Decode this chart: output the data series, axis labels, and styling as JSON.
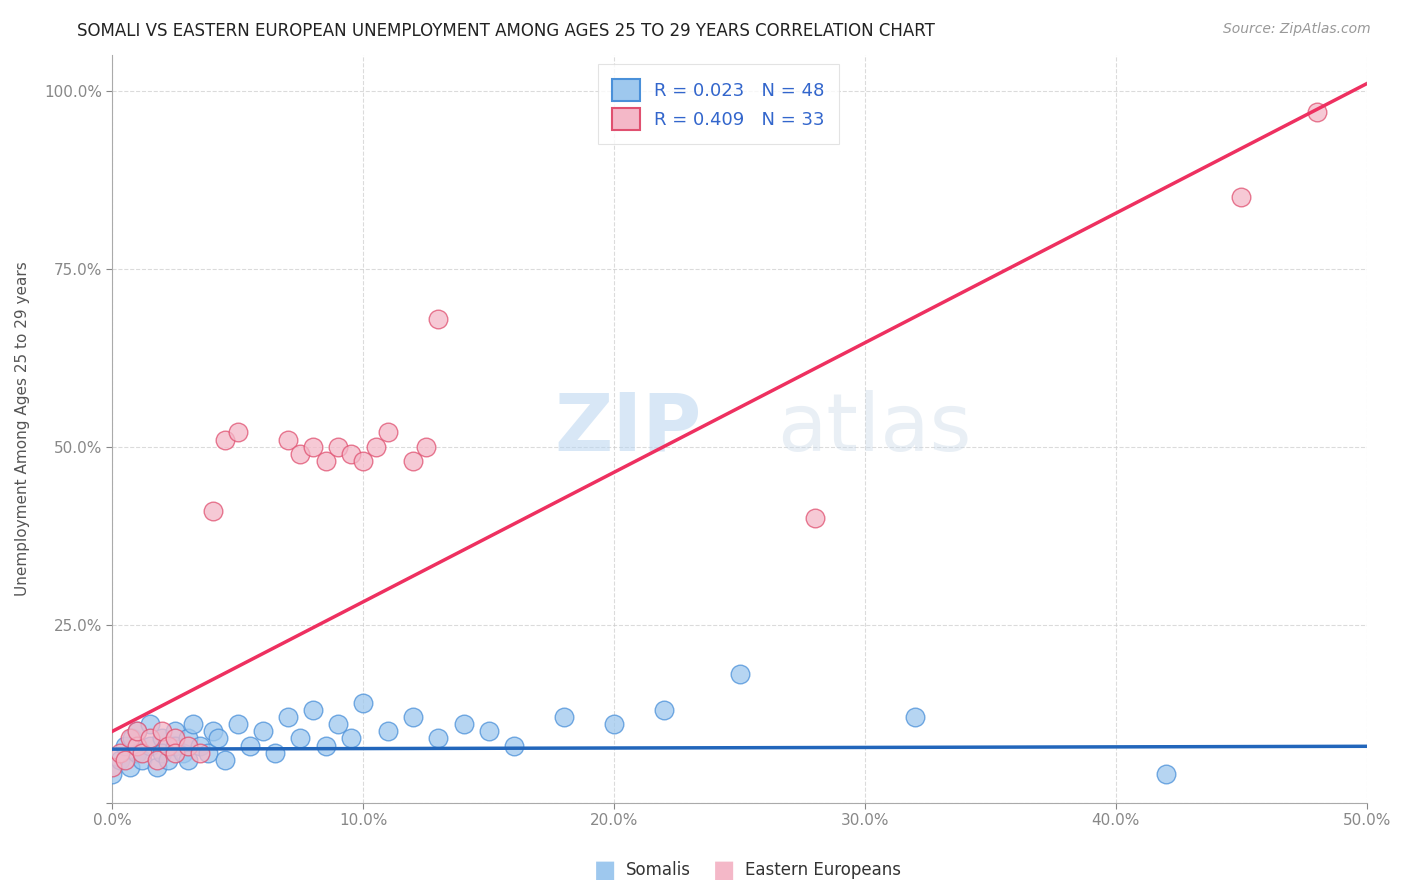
{
  "title": "SOMALI VS EASTERN EUROPEAN UNEMPLOYMENT AMONG AGES 25 TO 29 YEARS CORRELATION CHART",
  "source": "Source: ZipAtlas.com",
  "ylabel": "Unemployment Among Ages 25 to 29 years",
  "xlim": [
    0.0,
    0.5
  ],
  "ylim": [
    0.0,
    1.05
  ],
  "xtick_vals": [
    0.0,
    0.1,
    0.2,
    0.3,
    0.4,
    0.5
  ],
  "xticklabels": [
    "0.0%",
    "10.0%",
    "20.0%",
    "30.0%",
    "40.0%",
    "50.0%"
  ],
  "ytick_vals": [
    0.0,
    0.25,
    0.5,
    0.75,
    1.0
  ],
  "yticklabels": [
    "",
    "25.0%",
    "50.0%",
    "75.0%",
    "100.0%"
  ],
  "somali_color": "#9EC8EE",
  "somali_edge_color": "#4A90D9",
  "eastern_color": "#F4B8C8",
  "eastern_edge_color": "#E05070",
  "somali_line_color": "#2266BB",
  "eastern_line_color": "#EE3060",
  "legend_text_color": "#3366CC",
  "r_somali": 0.023,
  "n_somali": 48,
  "r_eastern": 0.409,
  "n_eastern": 33,
  "watermark_zip": "ZIP",
  "watermark_atlas": "atlas",
  "bg_color": "#FFFFFF",
  "grid_color": "#CCCCCC",
  "somali_line_slope": 0.008,
  "somali_line_intercept": 0.075,
  "eastern_line_slope": 1.82,
  "eastern_line_intercept": 0.1,
  "somali_x": [
    0.0,
    0.003,
    0.005,
    0.007,
    0.008,
    0.01,
    0.01,
    0.012,
    0.015,
    0.015,
    0.018,
    0.02,
    0.02,
    0.022,
    0.025,
    0.025,
    0.028,
    0.03,
    0.03,
    0.032,
    0.035,
    0.038,
    0.04,
    0.042,
    0.045,
    0.05,
    0.055,
    0.06,
    0.065,
    0.07,
    0.075,
    0.08,
    0.085,
    0.09,
    0.095,
    0.1,
    0.11,
    0.12,
    0.13,
    0.14,
    0.15,
    0.16,
    0.18,
    0.2,
    0.22,
    0.25,
    0.32,
    0.42
  ],
  "somali_y": [
    0.04,
    0.06,
    0.08,
    0.05,
    0.09,
    0.07,
    0.1,
    0.06,
    0.08,
    0.11,
    0.05,
    0.09,
    0.07,
    0.06,
    0.1,
    0.08,
    0.07,
    0.09,
    0.06,
    0.11,
    0.08,
    0.07,
    0.1,
    0.09,
    0.06,
    0.11,
    0.08,
    0.1,
    0.07,
    0.12,
    0.09,
    0.13,
    0.08,
    0.11,
    0.09,
    0.14,
    0.1,
    0.12,
    0.09,
    0.11,
    0.1,
    0.08,
    0.12,
    0.11,
    0.13,
    0.18,
    0.12,
    0.04
  ],
  "eastern_x": [
    0.0,
    0.003,
    0.005,
    0.007,
    0.01,
    0.01,
    0.012,
    0.015,
    0.018,
    0.02,
    0.022,
    0.025,
    0.025,
    0.03,
    0.035,
    0.04,
    0.045,
    0.05,
    0.07,
    0.075,
    0.08,
    0.085,
    0.09,
    0.095,
    0.1,
    0.105,
    0.11,
    0.12,
    0.125,
    0.13,
    0.28,
    0.45,
    0.48
  ],
  "eastern_y": [
    0.05,
    0.07,
    0.06,
    0.09,
    0.08,
    0.1,
    0.07,
    0.09,
    0.06,
    0.1,
    0.08,
    0.09,
    0.07,
    0.08,
    0.07,
    0.41,
    0.51,
    0.52,
    0.51,
    0.49,
    0.5,
    0.48,
    0.5,
    0.49,
    0.48,
    0.5,
    0.52,
    0.48,
    0.5,
    0.68,
    0.4,
    0.85,
    0.97
  ],
  "title_fontsize": 12,
  "source_fontsize": 10,
  "tick_fontsize": 11,
  "ylabel_fontsize": 11,
  "legend_fontsize": 13
}
